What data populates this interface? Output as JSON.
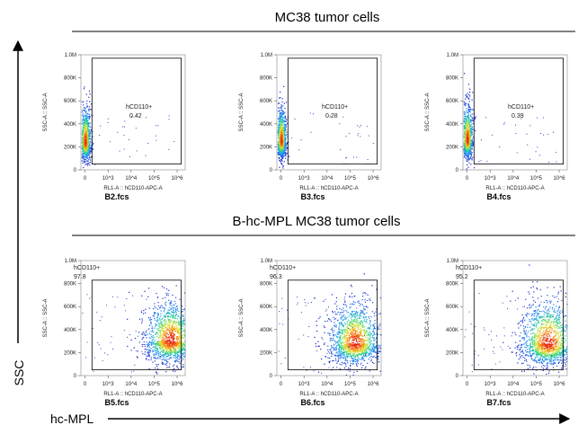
{
  "groups": [
    {
      "title": "MC38 tumor cells"
    },
    {
      "title": "B-hc-MPL MC38 tumor cells"
    }
  ],
  "axes": {
    "x_label": "hc-MPL",
    "y_label": "SSC"
  },
  "chart_data": [
    {
      "type": "scatter",
      "group": 0,
      "file": "B2.fcs",
      "xlabel": "RL1-A :: hCD110-APC-A",
      "ylabel": "SSC-A :: SSC-A",
      "x_scale": "biexponential",
      "x_ticks": [
        "0",
        "10^3",
        "10^4",
        "10^5",
        "10^6"
      ],
      "y_ticks": [
        "0",
        "200K",
        "400K",
        "600K",
        "800K",
        "1.0M"
      ],
      "ylim": [
        0,
        1000000
      ],
      "gate": {
        "name": "hCD110+",
        "percent": "0.42",
        "x_range": [
          300,
          1500000
        ],
        "y_range": [
          50000,
          970000
        ]
      },
      "population": {
        "x_center_log": 0.0,
        "x_spread": 0.12,
        "y_center": 240000,
        "y_spread": 140000
      }
    },
    {
      "type": "scatter",
      "group": 0,
      "file": "B3.fcs",
      "xlabel": "RL1-A :: hCD110-APC-A",
      "ylabel": "SSC-A :: SSC-A",
      "x_scale": "biexponential",
      "x_ticks": [
        "0",
        "10^3",
        "10^4",
        "10^5",
        "10^6"
      ],
      "y_ticks": [
        "0",
        "200K",
        "400K",
        "600K",
        "800K",
        "1.0M"
      ],
      "ylim": [
        0,
        1000000
      ],
      "gate": {
        "name": "hCD110+",
        "percent": "0.28",
        "x_range": [
          300,
          1500000
        ],
        "y_range": [
          50000,
          970000
        ]
      },
      "population": {
        "x_center_log": 0.0,
        "x_spread": 0.11,
        "y_center": 250000,
        "y_spread": 130000
      }
    },
    {
      "type": "scatter",
      "group": 0,
      "file": "B4.fcs",
      "xlabel": "RL1-A :: hCD110-APC-A",
      "ylabel": "SSC-A :: SSC-A",
      "x_scale": "biexponential",
      "x_ticks": [
        "0",
        "10^3",
        "10^4",
        "10^5",
        "10^6"
      ],
      "y_ticks": [
        "0",
        "200K",
        "400K",
        "600K",
        "800K",
        "1.0M"
      ],
      "ylim": [
        0,
        1000000
      ],
      "gate": {
        "name": "hCD110+",
        "percent": "0.39",
        "x_range": [
          300,
          1500000
        ],
        "y_range": [
          50000,
          970000
        ]
      },
      "population": {
        "x_center_log": 0.0,
        "x_spread": 0.12,
        "y_center": 260000,
        "y_spread": 140000
      }
    },
    {
      "type": "scatter",
      "group": 1,
      "file": "B5.fcs",
      "xlabel": "RL1-A :: hCD110-APC-A",
      "ylabel": "SSC-A :: SSC-A",
      "x_scale": "biexponential",
      "x_ticks": [
        "0",
        "10^3",
        "10^4",
        "10^5",
        "10^6"
      ],
      "y_ticks": [
        "0",
        "200K",
        "400K",
        "600K",
        "800K",
        "1.0M"
      ],
      "ylim": [
        0,
        1000000
      ],
      "gate": {
        "name": "hCD110+",
        "percent": "97.8",
        "x_range": [
          300,
          1500000
        ],
        "y_range": [
          50000,
          830000
        ]
      },
      "population": {
        "x_center_log": 3.7,
        "x_spread": 0.55,
        "y_center": 300000,
        "y_spread": 160000
      }
    },
    {
      "type": "scatter",
      "group": 1,
      "file": "B6.fcs",
      "xlabel": "RL1-A :: hCD110-APC-A",
      "ylabel": "SSC-A :: SSC-A",
      "x_scale": "biexponential",
      "x_ticks": [
        "0",
        "10^3",
        "10^4",
        "10^5",
        "10^6"
      ],
      "y_ticks": [
        "0",
        "200K",
        "400K",
        "600K",
        "800K",
        "1.0M"
      ],
      "ylim": [
        0,
        1000000
      ],
      "gate": {
        "name": "hCD110+",
        "percent": "96.3",
        "x_range": [
          300,
          1500000
        ],
        "y_range": [
          50000,
          830000
        ]
      },
      "population": {
        "x_center_log": 3.2,
        "x_spread": 0.55,
        "y_center": 280000,
        "y_spread": 160000
      }
    },
    {
      "type": "scatter",
      "group": 1,
      "file": "B7.fcs",
      "xlabel": "RL1-A :: hCD110-APC-A",
      "ylabel": "SSC-A :: SSC-A",
      "x_scale": "biexponential",
      "x_ticks": [
        "0",
        "10^3",
        "10^4",
        "10^5",
        "10^6"
      ],
      "y_ticks": [
        "0",
        "200K",
        "400K",
        "600K",
        "800K",
        "1.0M"
      ],
      "ylim": [
        0,
        1000000
      ],
      "gate": {
        "name": "hCD110+",
        "percent": "95.2",
        "x_range": [
          300,
          1500000
        ],
        "y_range": [
          50000,
          830000
        ]
      },
      "population": {
        "x_center_log": 3.5,
        "x_spread": 0.6,
        "y_center": 280000,
        "y_spread": 170000
      }
    }
  ]
}
